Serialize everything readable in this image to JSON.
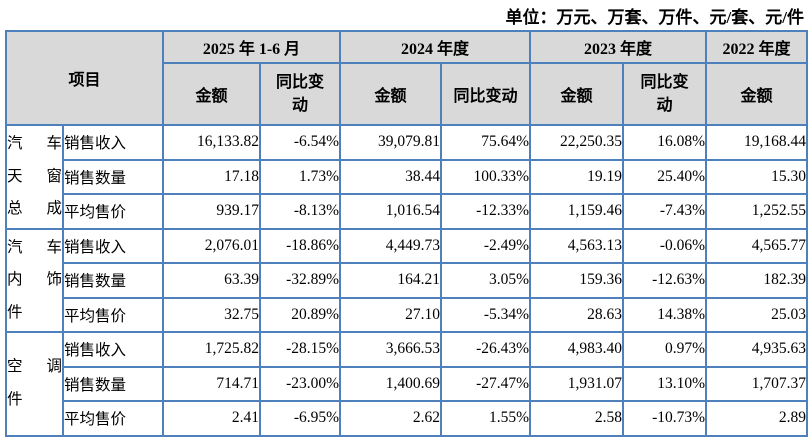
{
  "unit_note": "单位：万元、万套、万件、元/套、元/件",
  "colors": {
    "border_blue": "#4e80bc",
    "header_bg": "#d9d9d9",
    "text": "#000000"
  },
  "header": {
    "item_label": "项目",
    "periods": [
      {
        "label": "2025 年 1-6 月",
        "cols": [
          "金额",
          "同比变动"
        ]
      },
      {
        "label": "2024 年度",
        "cols": [
          "金额",
          "同比变动"
        ]
      },
      {
        "label": "2023 年度",
        "cols": [
          "金额",
          "同比变动"
        ]
      },
      {
        "label": "2022 年度",
        "cols": [
          "金额"
        ]
      }
    ]
  },
  "groups": [
    {
      "name": "汽车天窗总成",
      "name_lines": [
        "汽 车",
        "天 窗",
        "总 成"
      ],
      "rows": [
        {
          "metric": "销售收入",
          "values": [
            "16,133.82",
            "-6.54%",
            "39,079.81",
            "75.64%",
            "22,250.35",
            "16.08%",
            "19,168.44"
          ]
        },
        {
          "metric": "销售数量",
          "values": [
            "17.18",
            "1.73%",
            "38.44",
            "100.33%",
            "19.19",
            "25.40%",
            "15.30"
          ]
        },
        {
          "metric": "平均售价",
          "values": [
            "939.17",
            "-8.13%",
            "1,016.54",
            "-12.33%",
            "1,159.46",
            "-7.43%",
            "1,252.55"
          ]
        }
      ]
    },
    {
      "name": "汽车内饰件",
      "name_lines": [
        "汽 车",
        "内 饰",
        "件"
      ],
      "rows": [
        {
          "metric": "销售收入",
          "values": [
            "2,076.01",
            "-18.86%",
            "4,449.73",
            "-2.49%",
            "4,563.13",
            "-0.06%",
            "4,565.77"
          ]
        },
        {
          "metric": "销售数量",
          "values": [
            "63.39",
            "-32.89%",
            "164.21",
            "3.05%",
            "159.36",
            "-12.63%",
            "182.39"
          ]
        },
        {
          "metric": "平均售价",
          "values": [
            "32.75",
            "20.89%",
            "27.10",
            "-5.34%",
            "28.63",
            "14.38%",
            "25.03"
          ]
        }
      ]
    },
    {
      "name": "空调件",
      "name_lines": [
        "空 调",
        "件"
      ],
      "rows": [
        {
          "metric": "销售收入",
          "values": [
            "1,725.82",
            "-28.15%",
            "3,666.53",
            "-26.43%",
            "4,983.40",
            "0.97%",
            "4,935.63"
          ]
        },
        {
          "metric": "销售数量",
          "values": [
            "714.71",
            "-23.00%",
            "1,400.69",
            "-27.47%",
            "1,931.07",
            "13.10%",
            "1,707.37"
          ]
        },
        {
          "metric": "平均售价",
          "values": [
            "2.41",
            "-6.95%",
            "2.62",
            "1.55%",
            "2.58",
            "-10.73%",
            "2.89"
          ]
        }
      ]
    }
  ]
}
